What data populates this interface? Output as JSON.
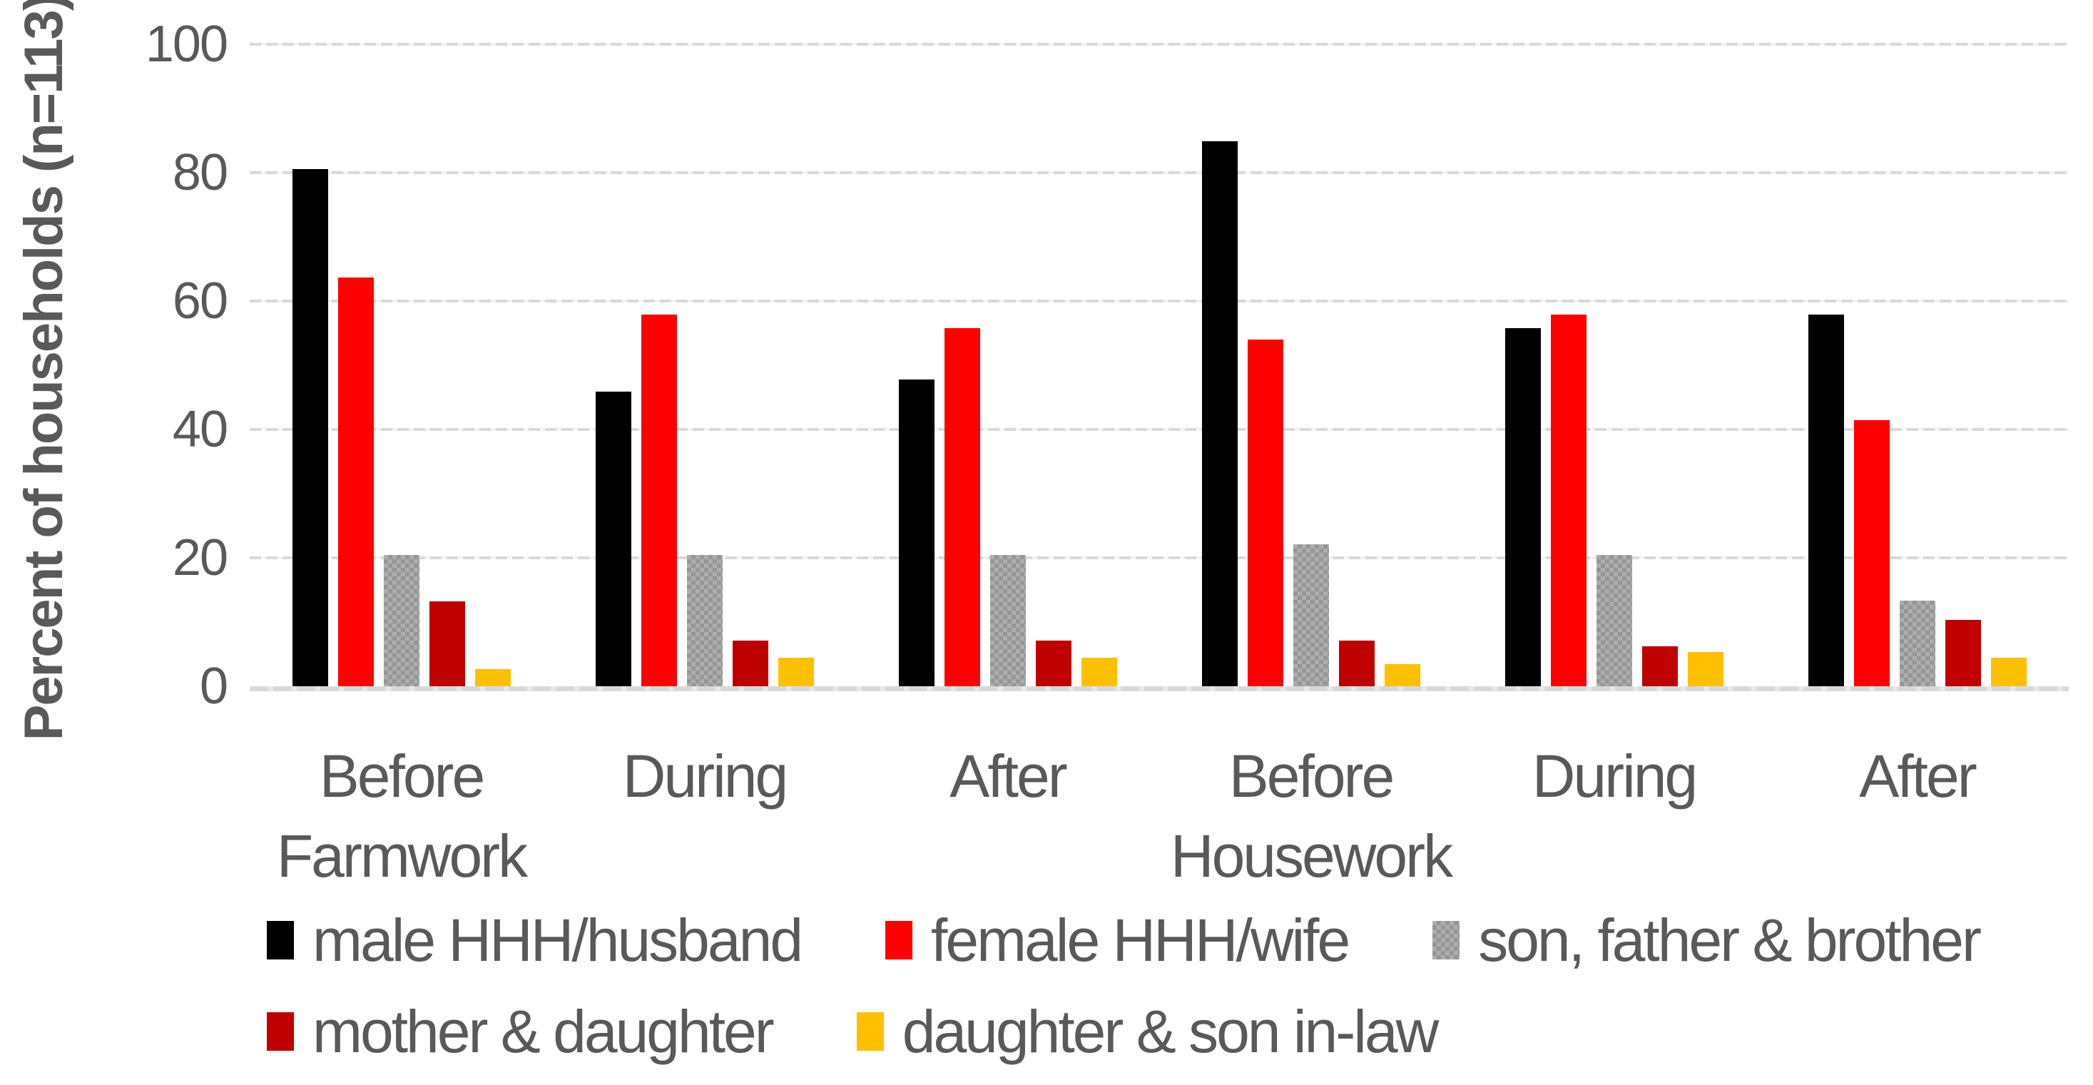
{
  "chart_data": {
    "type": "bar",
    "ylabel": "Percent of households (n=113)",
    "ylim": [
      0,
      100
    ],
    "yticks": [
      0,
      20,
      40,
      60,
      80,
      100
    ],
    "grid": "horizontal dashed light-gray lines at each y tick",
    "legend_position": "bottom",
    "group_labels": [
      "Before",
      "During",
      "After",
      "Before",
      "During",
      "After"
    ],
    "section_labels": [
      {
        "text": "Farmwork",
        "group_index": 0
      },
      {
        "text": "Housework",
        "group_index": 3
      }
    ],
    "series": [
      {
        "name": "male HHH/husband",
        "color": "#000000",
        "pattern": "solid",
        "values": [
          80.6,
          45.9,
          47.8,
          84.9,
          55.8,
          57.9
        ]
      },
      {
        "name": "female HHH/wife",
        "color": "#FF0000",
        "pattern": "solid",
        "values": [
          63.7,
          57.9,
          55.8,
          54.0,
          57.9,
          41.4
        ]
      },
      {
        "name": "son, father & brother",
        "color": "#ADADAD",
        "pattern": "checker",
        "values": [
          20.4,
          20.4,
          20.4,
          22.1,
          20.4,
          13.3
        ]
      },
      {
        "name": "mother & daughter",
        "color": "#C00000",
        "pattern": "solid",
        "values": [
          13.2,
          7.1,
          7.1,
          7.1,
          6.2,
          10.3
        ]
      },
      {
        "name": "daughter & son in-law",
        "color": "#FFC000",
        "pattern": "solid",
        "values": [
          2.7,
          4.4,
          4.4,
          3.5,
          5.3,
          4.4
        ]
      }
    ],
    "legend_rows": [
      [
        0,
        1,
        2
      ],
      [
        3,
        4
      ]
    ],
    "colors": {
      "gridline": "#D9D9D9",
      "axis_text": "#595959",
      "background": "#FFFFFF"
    }
  }
}
